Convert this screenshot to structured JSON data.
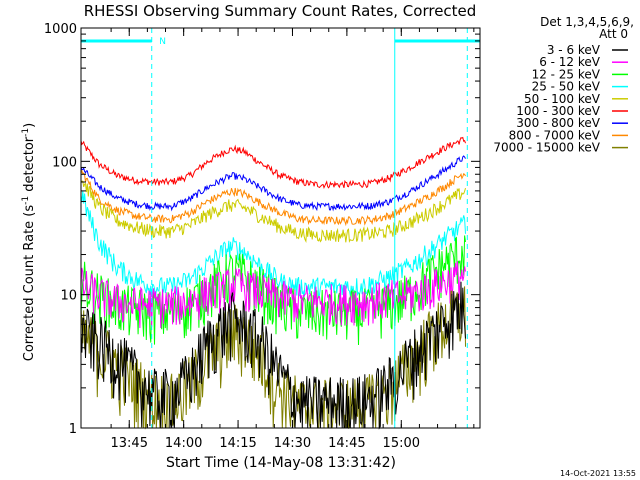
{
  "chart_data": {
    "type": "line",
    "title": "RHESSI Observing Summary Count Rates, Corrected",
    "xlabel": "Start Time (14-May-08 13:31:42)",
    "ylabel_main": "Corrected Count Rate (s",
    "ylabel_sup1": "-1",
    "ylabel_mid": " detector",
    "ylabel_sup2": "-1",
    "ylabel_end": ")",
    "x_unit": "minutes since 13:31:42",
    "x_range": [
      0,
      110
    ],
    "x_ticks": [
      {
        "t": 13.3,
        "label": "13:45"
      },
      {
        "t": 28.3,
        "label": "14:00"
      },
      {
        "t": 43.3,
        "label": "14:15"
      },
      {
        "t": 58.3,
        "label": "14:30"
      },
      {
        "t": 73.3,
        "label": "14:45"
      },
      {
        "t": 88.3,
        "label": "15:00"
      }
    ],
    "y_scale": "log",
    "y_range": [
      1,
      1000
    ],
    "y_tick_labels": [
      {
        "v": 1000,
        "label": "1000"
      },
      {
        "v": 100,
        "label": "100"
      },
      {
        "v": 10,
        "label": "10"
      },
      {
        "v": 1,
        "label": "1"
      }
    ],
    "legend": {
      "header1": "Det 1,3,4,5,6,9,",
      "header2": "Att 0",
      "placement": "right"
    },
    "night_intervals": [
      {
        "start": 0,
        "end": 19.5
      },
      {
        "start": 86.5,
        "end": 110
      }
    ],
    "saa_label": "N",
    "saa_marker_t": 22.5,
    "vertical_dashed_lines": [
      19.5,
      106.5
    ],
    "vertical_solid_lines": [
      0,
      86.5
    ],
    "series": [
      {
        "name": "3 - 6 keV",
        "color": "#000000",
        "t": [
          0,
          5,
          10,
          15,
          20,
          25,
          30,
          35,
          40,
          42,
          45,
          50,
          55,
          60,
          65,
          70,
          75,
          80,
          85,
          90,
          95,
          100,
          105,
          106
        ],
        "y": [
          5.5,
          4.5,
          3.5,
          2.5,
          1.8,
          1.8,
          2.5,
          4.5,
          6.2,
          6.8,
          6.0,
          4.5,
          2.5,
          1.6,
          1.6,
          1.6,
          1.6,
          1.7,
          2.2,
          3.2,
          4.5,
          6.5,
          8.5,
          8.0
        ]
      },
      {
        "name": "6 - 12 keV",
        "color": "#ff00ff",
        "t": [
          0,
          5,
          10,
          15,
          20,
          25,
          30,
          35,
          40,
          42,
          45,
          50,
          55,
          60,
          65,
          70,
          75,
          80,
          85,
          90,
          95,
          100,
          105,
          106
        ],
        "y": [
          12,
          10,
          9,
          8.5,
          8.5,
          8.5,
          9,
          10.5,
          11.5,
          12,
          11.5,
          10.5,
          9.5,
          9,
          9,
          9,
          9,
          9,
          9.5,
          10,
          11,
          12.5,
          14,
          14
        ]
      },
      {
        "name": "12 - 25 keV",
        "color": "#00ff00",
        "t": [
          0,
          5,
          10,
          15,
          20,
          25,
          30,
          35,
          40,
          42,
          45,
          50,
          55,
          60,
          65,
          70,
          75,
          80,
          85,
          90,
          95,
          100,
          105,
          106
        ],
        "y": [
          13,
          10,
          8.5,
          7.8,
          7.5,
          7.5,
          8.5,
          11,
          14,
          15,
          14,
          11,
          8.5,
          7.5,
          7.5,
          7.5,
          7.5,
          7.8,
          8.5,
          10,
          13,
          17,
          21,
          22
        ]
      },
      {
        "name": "25 - 50 keV",
        "color": "#00ffff",
        "t": [
          0,
          2,
          5,
          10,
          15,
          20,
          25,
          30,
          35,
          40,
          42,
          45,
          50,
          55,
          60,
          65,
          70,
          75,
          80,
          85,
          90,
          95,
          100,
          105,
          106
        ],
        "y": [
          60,
          40,
          25,
          16,
          13,
          11.5,
          11.5,
          13,
          17,
          22,
          23,
          21,
          16,
          12.5,
          11.5,
          11.5,
          11.5,
          11.5,
          12,
          13.5,
          16,
          20,
          26,
          33,
          34
        ]
      },
      {
        "name": "50 - 100 keV",
        "color": "#cccc00",
        "t": [
          0,
          5,
          10,
          15,
          20,
          25,
          30,
          35,
          40,
          42,
          45,
          50,
          55,
          60,
          65,
          70,
          75,
          80,
          85,
          90,
          95,
          100,
          105,
          106
        ],
        "y": [
          75,
          45,
          36,
          32,
          30,
          30,
          33,
          40,
          46,
          47,
          45,
          38,
          32,
          29,
          28,
          28,
          28,
          28.5,
          30,
          34,
          40,
          48,
          58,
          60
        ]
      },
      {
        "name": "100 - 300 keV",
        "color": "#ff0000",
        "t": [
          0,
          5,
          10,
          15,
          20,
          25,
          30,
          35,
          40,
          42,
          45,
          50,
          55,
          60,
          65,
          70,
          75,
          80,
          85,
          90,
          95,
          100,
          105,
          106
        ],
        "y": [
          140,
          95,
          78,
          72,
          70,
          70,
          78,
          100,
          120,
          124,
          118,
          95,
          78,
          70,
          67,
          67,
          67,
          68,
          75,
          88,
          105,
          125,
          145,
          143
        ]
      },
      {
        "name": "300 - 800 keV",
        "color": "#0000ff",
        "t": [
          0,
          5,
          10,
          15,
          20,
          25,
          30,
          35,
          40,
          42,
          45,
          50,
          55,
          60,
          65,
          70,
          75,
          80,
          85,
          90,
          95,
          100,
          105,
          106
        ],
        "y": [
          90,
          65,
          53,
          48,
          46,
          46,
          52,
          64,
          75,
          78,
          74,
          62,
          52,
          47,
          46,
          46,
          46,
          46.5,
          50,
          58,
          70,
          85,
          105,
          103
        ]
      },
      {
        "name": "800 - 7000 keV",
        "color": "#ff8800",
        "t": [
          0,
          5,
          10,
          15,
          20,
          25,
          30,
          35,
          40,
          42,
          45,
          50,
          55,
          60,
          65,
          70,
          75,
          80,
          85,
          90,
          95,
          100,
          105,
          106
        ],
        "y": [
          85,
          52,
          43,
          39,
          37,
          37,
          41,
          50,
          58,
          60,
          57,
          48,
          41,
          37,
          36,
          36,
          36,
          36.5,
          39,
          45,
          53,
          64,
          80,
          82
        ]
      },
      {
        "name": "7000 - 15000 keV",
        "color": "#808000",
        "t": [
          0,
          5,
          10,
          15,
          20,
          25,
          30,
          35,
          40,
          42,
          45,
          50,
          55,
          60,
          65,
          70,
          75,
          80,
          85,
          90,
          95,
          100,
          105,
          106
        ],
        "y": [
          5.0,
          4.0,
          3.0,
          2.2,
          1.7,
          1.6,
          2.2,
          3.5,
          5.0,
          5.5,
          5.0,
          3.5,
          2.0,
          1.5,
          1.5,
          1.5,
          1.5,
          1.6,
          2.0,
          3.0,
          4.5,
          6.2,
          7.8,
          7.5
        ]
      }
    ]
  },
  "footer": {
    "timestamp": "14-Oct-2021 13:55"
  }
}
